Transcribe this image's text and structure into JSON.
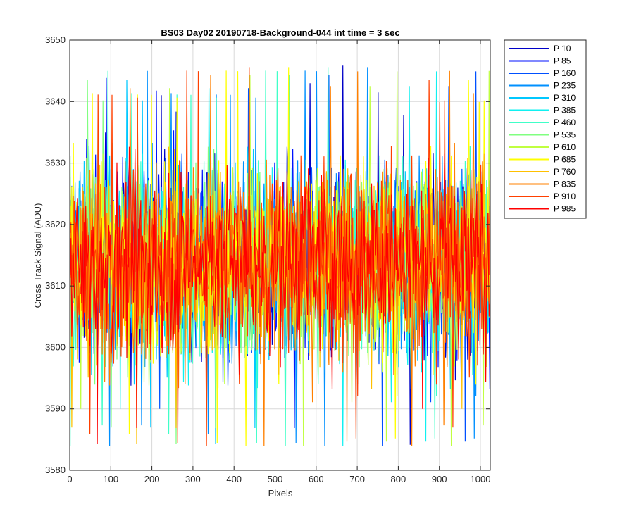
{
  "chart_data": {
    "type": "line",
    "title": "BS03 Day02 20190718-Background-044 int time = 3 sec",
    "xlabel": "Pixels",
    "ylabel": "Cross Track Signal (ADU)",
    "xlim": [
      0,
      1024
    ],
    "ylim": [
      3580,
      3650
    ],
    "xticks": [
      0,
      100,
      200,
      300,
      400,
      500,
      600,
      700,
      800,
      900,
      1000
    ],
    "yticks": [
      3580,
      3590,
      3600,
      3610,
      3620,
      3630,
      3640,
      3650
    ],
    "grid": true,
    "legend_position": "outside-top-right",
    "signal_mean": 3614,
    "signal_typical_range": [
      3593,
      3638
    ],
    "series": [
      {
        "name": "P 10",
        "color": "#0000c8"
      },
      {
        "name": "P 85",
        "color": "#0012ff"
      },
      {
        "name": "P 160",
        "color": "#0050ff"
      },
      {
        "name": "P 235",
        "color": "#0090ff"
      },
      {
        "name": "P 310",
        "color": "#00c8ff"
      },
      {
        "name": "P 385",
        "color": "#10f0f0"
      },
      {
        "name": "P 460",
        "color": "#40ffc8"
      },
      {
        "name": "P 535",
        "color": "#80ff80"
      },
      {
        "name": "P 610",
        "color": "#c0ff40"
      },
      {
        "name": "P 685",
        "color": "#ffff00"
      },
      {
        "name": "P 760",
        "color": "#ffc000"
      },
      {
        "name": "P 835",
        "color": "#ff8000"
      },
      {
        "name": "P 910",
        "color": "#ff4000"
      },
      {
        "name": "P 985",
        "color": "#ff0000"
      }
    ]
  }
}
